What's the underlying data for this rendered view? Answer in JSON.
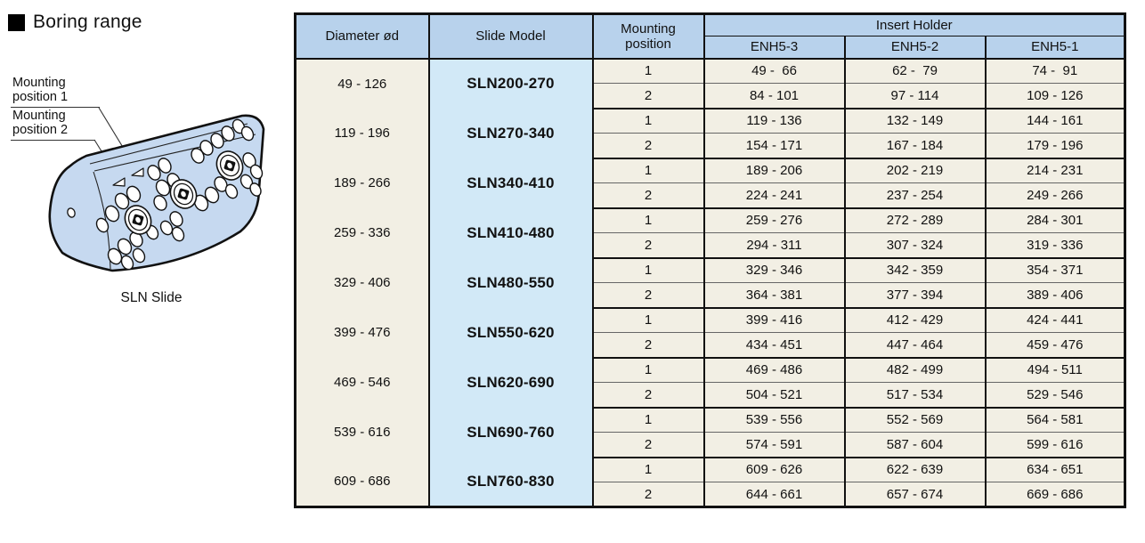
{
  "title": {
    "text": "Boring range"
  },
  "diagram": {
    "labels": {
      "mounting_position_1": "Mounting position 1",
      "mounting_position_2": "Mounting position 2"
    },
    "caption": "SLN Slide",
    "slide_fill_color": "#c6d9f0"
  },
  "table": {
    "col_headers": {
      "diameter": "Diameter ød",
      "slide_model": "Slide Model",
      "mounting_position": "Mounting position",
      "insert_holder": "Insert Holder",
      "enh": [
        "ENH5-3",
        "ENH5-2",
        "ENH5-1"
      ]
    },
    "colors": {
      "header_bg": "#b8d2ec",
      "model_bg": "#d2e9f7",
      "cell_bg": "#f2efe4",
      "border": "#111111"
    },
    "groups": [
      {
        "diameter": "49 - 126",
        "model": "SLN200-270",
        "rows": [
          {
            "position": "1",
            "ranges": [
              "49 -  66",
              "62 -  79",
              "74 -  91"
            ]
          },
          {
            "position": "2",
            "ranges": [
              "84 - 101",
              "97 - 114",
              "109 - 126"
            ]
          }
        ]
      },
      {
        "diameter": "119 - 196",
        "model": "SLN270-340",
        "rows": [
          {
            "position": "1",
            "ranges": [
              "119 - 136",
              "132 - 149",
              "144 - 161"
            ]
          },
          {
            "position": "2",
            "ranges": [
              "154 - 171",
              "167 - 184",
              "179 - 196"
            ]
          }
        ]
      },
      {
        "diameter": "189 - 266",
        "model": "SLN340-410",
        "rows": [
          {
            "position": "1",
            "ranges": [
              "189 - 206",
              "202 - 219",
              "214 - 231"
            ]
          },
          {
            "position": "2",
            "ranges": [
              "224 - 241",
              "237 - 254",
              "249 - 266"
            ]
          }
        ]
      },
      {
        "diameter": "259 - 336",
        "model": "SLN410-480",
        "rows": [
          {
            "position": "1",
            "ranges": [
              "259 - 276",
              "272 - 289",
              "284 - 301"
            ]
          },
          {
            "position": "2",
            "ranges": [
              "294 - 311",
              "307 - 324",
              "319 - 336"
            ]
          }
        ]
      },
      {
        "diameter": "329 - 406",
        "model": "SLN480-550",
        "rows": [
          {
            "position": "1",
            "ranges": [
              "329 - 346",
              "342 - 359",
              "354 - 371"
            ]
          },
          {
            "position": "2",
            "ranges": [
              "364 - 381",
              "377 - 394",
              "389 - 406"
            ]
          }
        ]
      },
      {
        "diameter": "399 - 476",
        "model": "SLN550-620",
        "rows": [
          {
            "position": "1",
            "ranges": [
              "399 - 416",
              "412 - 429",
              "424 - 441"
            ]
          },
          {
            "position": "2",
            "ranges": [
              "434 - 451",
              "447 - 464",
              "459 - 476"
            ]
          }
        ]
      },
      {
        "diameter": "469 - 546",
        "model": "SLN620-690",
        "rows": [
          {
            "position": "1",
            "ranges": [
              "469 - 486",
              "482 - 499",
              "494 - 511"
            ]
          },
          {
            "position": "2",
            "ranges": [
              "504 - 521",
              "517 - 534",
              "529 - 546"
            ]
          }
        ]
      },
      {
        "diameter": "539 - 616",
        "model": "SLN690-760",
        "rows": [
          {
            "position": "1",
            "ranges": [
              "539 - 556",
              "552 - 569",
              "564 - 581"
            ]
          },
          {
            "position": "2",
            "ranges": [
              "574 - 591",
              "587 - 604",
              "599 - 616"
            ]
          }
        ]
      },
      {
        "diameter": "609 - 686",
        "model": "SLN760-830",
        "rows": [
          {
            "position": "1",
            "ranges": [
              "609 - 626",
              "622 - 639",
              "634 - 651"
            ]
          },
          {
            "position": "2",
            "ranges": [
              "644 - 661",
              "657 - 674",
              "669 - 686"
            ]
          }
        ]
      }
    ]
  }
}
